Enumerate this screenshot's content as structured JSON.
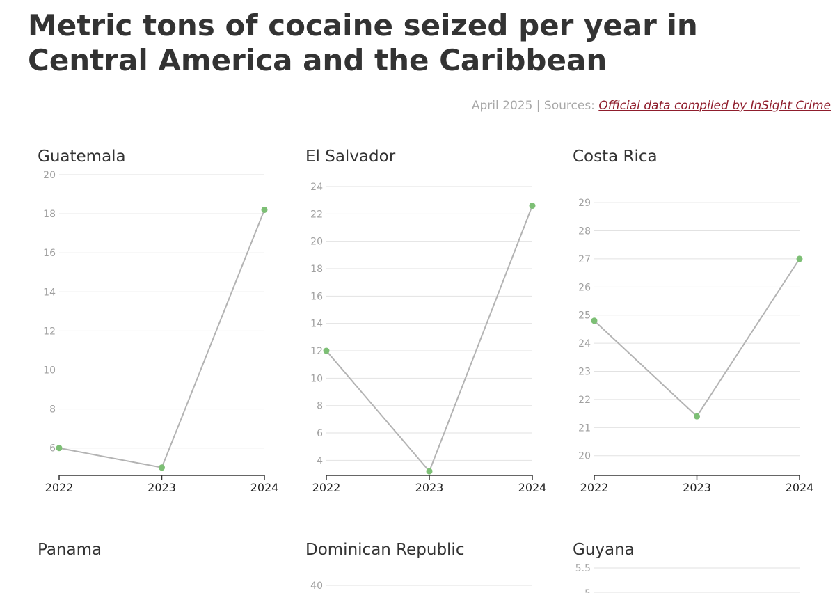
{
  "header": {
    "title": "Metric tons of cocaine seized per year in Central America and the Caribbean",
    "meta_prefix": "April 2025 | Sources: ",
    "source_link": "Official data compiled by InSight Crime"
  },
  "colors": {
    "line": "#b3b3b3",
    "point": "#7dbf75",
    "grid": "#e2e2e2",
    "axis": "#333333",
    "tick_y": "#a0a0a0",
    "link": "#8f1d2c"
  },
  "chart_data": [
    {
      "type": "line",
      "title": "Guatemala",
      "x": [
        "2022",
        "2023",
        "2024"
      ],
      "values": [
        6.0,
        5.0,
        18.2
      ],
      "ylim": [
        4.6,
        20
      ],
      "yticks": [
        6,
        8,
        10,
        12,
        14,
        16,
        18,
        20
      ],
      "grid": true
    },
    {
      "type": "line",
      "title": "El Salvador",
      "x": [
        "2022",
        "2023",
        "2024"
      ],
      "values": [
        12.0,
        3.2,
        22.6
      ],
      "ylim": [
        2.9,
        24
      ],
      "yticks": [
        4,
        6,
        8,
        10,
        12,
        14,
        16,
        18,
        20,
        22,
        24
      ],
      "grid": true
    },
    {
      "type": "line",
      "title": "Costa Rica",
      "x": [
        "2022",
        "2023",
        "2024"
      ],
      "values": [
        24.8,
        21.4,
        27.0
      ],
      "ylim": [
        19.3,
        29.3
      ],
      "yticks": [
        20,
        21,
        22,
        23,
        24,
        25,
        26,
        27,
        28,
        29
      ],
      "grid": true
    },
    {
      "type": "line",
      "title": "Panama",
      "x": [],
      "values": [],
      "yticks": [],
      "grid": true
    },
    {
      "type": "line",
      "title": "Dominican Republic",
      "x": [],
      "values": [],
      "yticks": [
        40
      ],
      "grid": true
    },
    {
      "type": "line",
      "title": "Guyana",
      "x": [],
      "values": [],
      "yticks": [
        5.5,
        5.0
      ],
      "grid": true
    }
  ]
}
